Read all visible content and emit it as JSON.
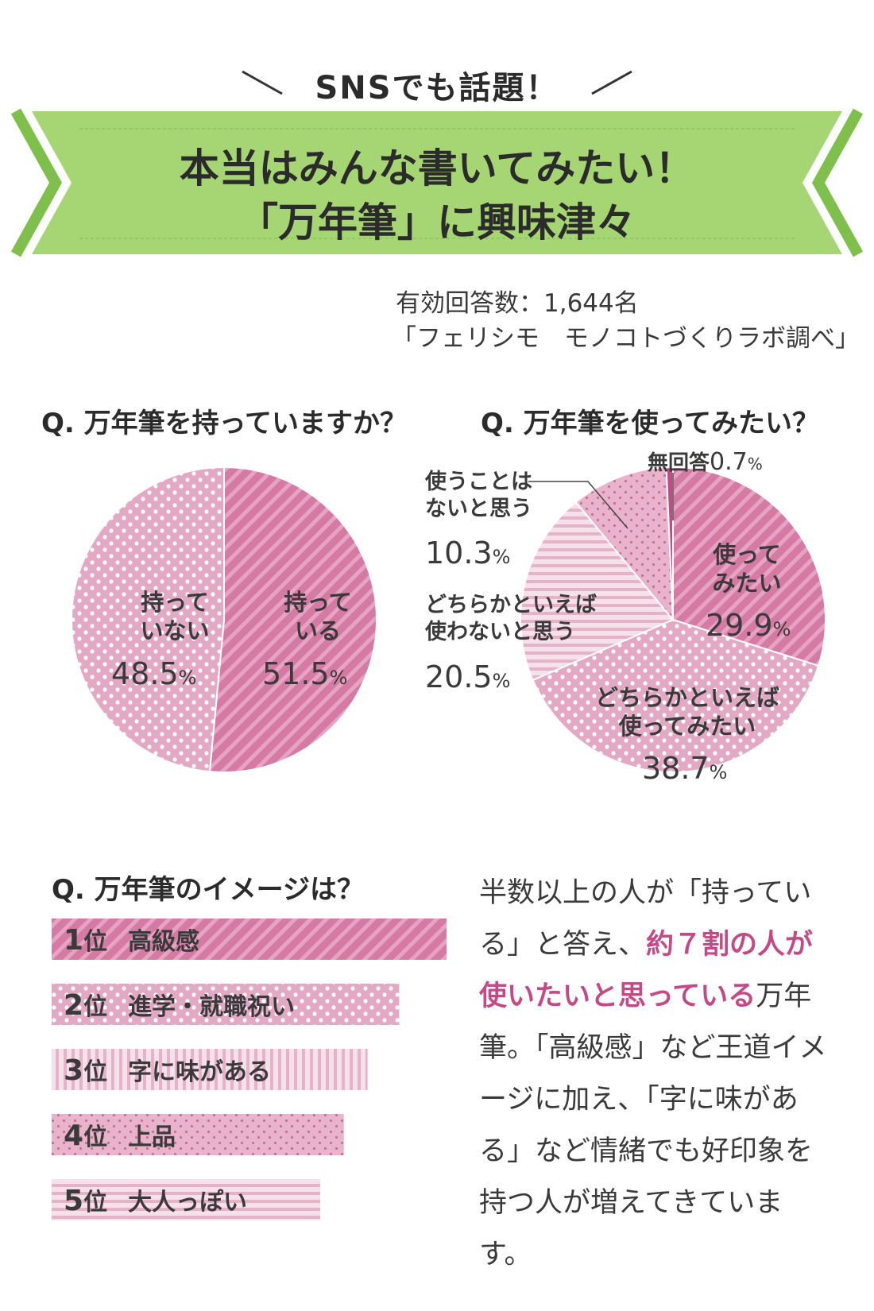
{
  "kicker": "SNSでも話題！",
  "banner": {
    "line1": "本当はみんな書いてみたい！",
    "line2": "「万年筆」に興味津々"
  },
  "meta": {
    "respondents": "有効回答数：1,644名",
    "source": "「フェリシモ　モノコトづくりラボ調べ」"
  },
  "colors": {
    "banner_green": "#a6d574",
    "banner_dark": "#7fbf4b",
    "pink_dark": "#d47aa4",
    "pink_mid": "#e8aec9",
    "pink_light": "#f2d3e1",
    "highlight": "#c44a87"
  },
  "chart_data": [
    {
      "type": "pie",
      "title": "Q. 万年筆を持っていますか？",
      "slices": [
        {
          "label_line1": "持って",
          "label_line2": "いる",
          "pct_num": "51.5",
          "pct_unit": "%",
          "value": 51.5,
          "pattern": "stripe"
        },
        {
          "label_line1": "持って",
          "label_line2": "いない",
          "pct_num": "48.5",
          "pct_unit": "%",
          "value": 48.5,
          "pattern": "dots"
        }
      ]
    },
    {
      "type": "pie",
      "title": "Q. 万年筆を使ってみたい？",
      "slices": [
        {
          "label_line1": "使って",
          "label_line2": "みたい",
          "pct_num": "29.9",
          "pct_unit": "%",
          "value": 29.9,
          "pattern": "stripe"
        },
        {
          "label_line1": "どちらかといえば",
          "label_line2": "使ってみたい",
          "pct_num": "38.7",
          "pct_unit": "%",
          "value": 38.7,
          "pattern": "dots"
        },
        {
          "label_line1": "どちらかといえば",
          "label_line2": "使わないと思う",
          "pct_num": "20.5",
          "pct_unit": "%",
          "value": 20.5,
          "pattern": "hstripe"
        },
        {
          "label_line1": "使うことは",
          "label_line2": "ないと思う",
          "pct_num": "10.3",
          "pct_unit": "%",
          "value": 10.3,
          "pattern": "smalldots"
        },
        {
          "label_line1": "無回答",
          "label_line2": "",
          "pct_num": "0.7",
          "pct_unit": "%",
          "value": 0.7,
          "pattern": "solid"
        }
      ]
    },
    {
      "type": "bar",
      "title": "Q. 万年筆のイメージは？",
      "categories": [
        "高級感",
        "進学・就職祝い",
        "字に味がある",
        "上品",
        "大人っぽい"
      ],
      "ranks": [
        "1",
        "2",
        "3",
        "4",
        "5"
      ],
      "rank_suffix": "位",
      "values": [
        5,
        4.4,
        4,
        3.7,
        3.4
      ],
      "patterns": [
        "stripe",
        "dots",
        "vstripe",
        "smalldots",
        "hstripe"
      ]
    }
  ],
  "summary": {
    "part1": "半数以上の人が「持っている」と答え、",
    "highlight": "約７割の人が使いたいと思っている",
    "part2": "万年筆。「高級感」など王道イメージに加え、「字に味がある」など情緒でも好印象を持つ人が増えてきています。"
  }
}
